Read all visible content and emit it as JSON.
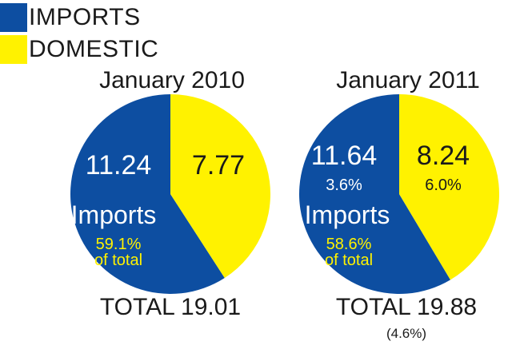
{
  "legend": [
    {
      "label": "IMPORTS",
      "color": "#0d4ea1"
    },
    {
      "label": "DOMESTIC",
      "color": "#fff200"
    }
  ],
  "chart_data": [
    {
      "type": "pie",
      "title": "January 2010",
      "slices": [
        {
          "name": "Imports",
          "value": 11.24,
          "value_label": "11.24",
          "change_label": "",
          "color": "#0d4ea1"
        },
        {
          "name": "Domestic",
          "value": 7.77,
          "value_label": "7.77",
          "change_label": "",
          "color": "#fff200"
        }
      ],
      "imports_label": "Imports",
      "share_label": "59.1%",
      "share_suffix": "of total",
      "total_label": "TOTAL 19.01",
      "total_change": ""
    },
    {
      "type": "pie",
      "title": "January 2011",
      "slices": [
        {
          "name": "Imports",
          "value": 11.64,
          "value_label": "11.64",
          "change_label": "3.6%",
          "color": "#0d4ea1"
        },
        {
          "name": "Domestic",
          "value": 8.24,
          "value_label": "8.24",
          "change_label": "6.0%",
          "color": "#fff200"
        }
      ],
      "imports_label": "Imports",
      "share_label": "58.6%",
      "share_suffix": "of total",
      "total_label": "TOTAL 19.88",
      "total_change": "(4.6%)"
    }
  ]
}
